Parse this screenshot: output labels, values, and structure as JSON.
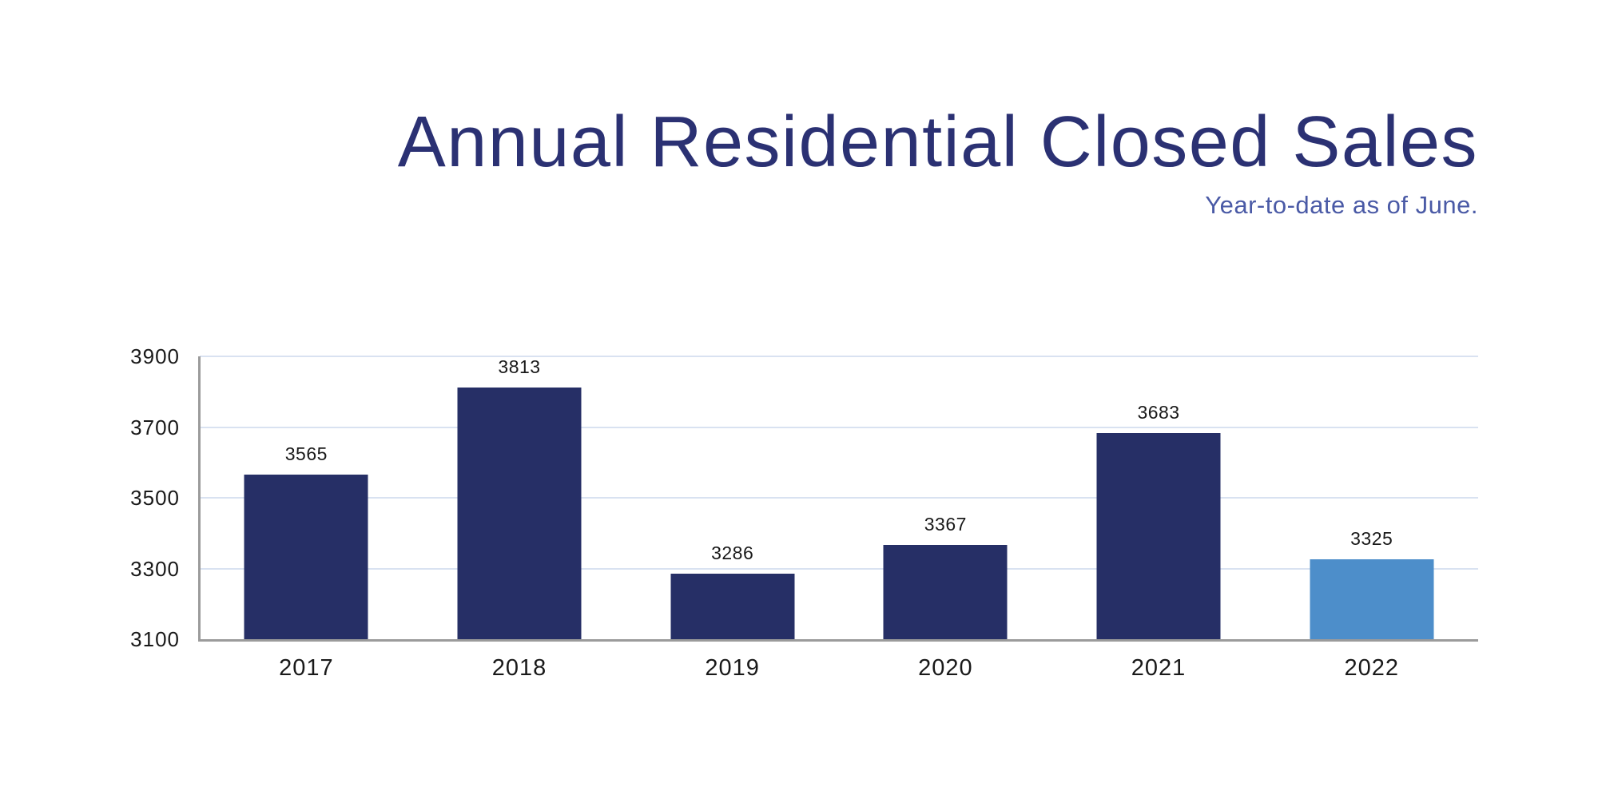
{
  "header": {
    "title": "Annual Residential Closed Sales",
    "subtitle": "Year-to-date as of June."
  },
  "colors": {
    "title_text": "#2b3173",
    "subtitle_text": "#4a5aa6",
    "bar_primary": "#262f66",
    "bar_highlight": "#4d8eca",
    "gridline": "#d9e2f1",
    "axis_line": "#9b9b9b",
    "label_text": "#191919"
  },
  "chart_data": {
    "type": "bar",
    "title": "Annual Residential Closed Sales",
    "subtitle": "Year-to-date as of June.",
    "categories": [
      "2017",
      "2018",
      "2019",
      "2020",
      "2021",
      "2022"
    ],
    "values": [
      3565,
      3813,
      3286,
      3367,
      3683,
      3325
    ],
    "bar_labels": [
      "3565",
      "3813",
      "3286",
      "3367",
      "3683",
      "3325"
    ],
    "highlight_index": 5,
    "xlabel": "",
    "ylabel": "",
    "ylim": [
      3100,
      3900
    ],
    "yticks": [
      3900,
      3700,
      3500,
      3300,
      3100
    ],
    "grid": "horizontal",
    "legend": "none"
  }
}
